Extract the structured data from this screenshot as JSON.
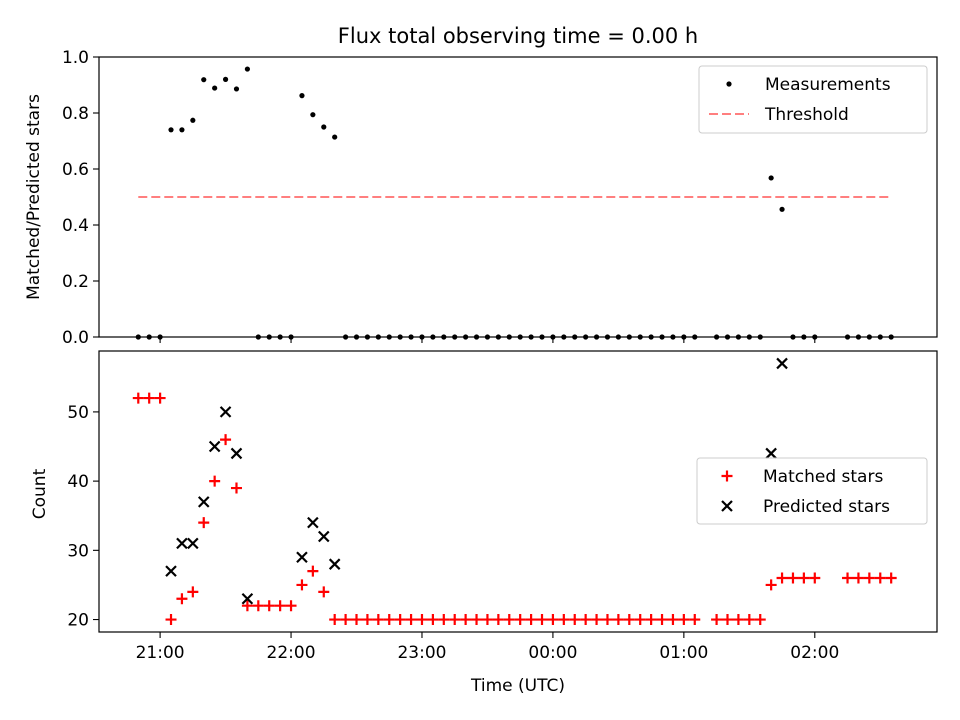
{
  "chart_data": [
    {
      "type": "scatter",
      "title": "Flux total observing time = 0.00 h",
      "xlabel": "",
      "ylabel": "Matched/Predicted stars",
      "xlim": [
        "20:32",
        "02:56"
      ],
      "ylim": [
        0,
        1.0
      ],
      "yticks": [
        0.0,
        0.2,
        0.4,
        0.6,
        0.8,
        1.0
      ],
      "ytick_labels": [
        "0.0",
        "0.2",
        "0.4",
        "0.6",
        "0.8",
        "1.0"
      ],
      "xticks": [
        "21:00",
        "22:00",
        "23:00",
        "00:00",
        "01:00",
        "02:00"
      ],
      "grid": false,
      "legend": {
        "placement": "upper right",
        "entries": [
          "Measurements",
          "Threshold"
        ]
      },
      "series": [
        {
          "name": "Measurements",
          "marker": "dot",
          "color": "#000000",
          "points": [
            [
              "20:50",
              0.0
            ],
            [
              "20:55",
              0.0
            ],
            [
              "21:00",
              0.0
            ],
            [
              "21:05",
              0.74
            ],
            [
              "21:10",
              0.74
            ],
            [
              "21:15",
              0.774
            ],
            [
              "21:20",
              0.919
            ],
            [
              "21:25",
              0.889
            ],
            [
              "21:30",
              0.92
            ],
            [
              "21:35",
              0.886
            ],
            [
              "21:40",
              0.957
            ],
            [
              "21:45",
              0.0
            ],
            [
              "21:50",
              0.0
            ],
            [
              "21:55",
              0.0
            ],
            [
              "22:00",
              0.0
            ],
            [
              "22:05",
              0.862
            ],
            [
              "22:10",
              0.794
            ],
            [
              "22:15",
              0.75
            ],
            [
              "22:20",
              0.714
            ],
            [
              "22:25",
              0.0
            ],
            [
              "22:30",
              0.0
            ],
            [
              "22:35",
              0.0
            ],
            [
              "22:40",
              0.0
            ],
            [
              "22:45",
              0.0
            ],
            [
              "22:50",
              0.0
            ],
            [
              "22:55",
              0.0
            ],
            [
              "23:00",
              0.0
            ],
            [
              "23:05",
              0.0
            ],
            [
              "23:10",
              0.0
            ],
            [
              "23:15",
              0.0
            ],
            [
              "23:20",
              0.0
            ],
            [
              "23:25",
              0.0
            ],
            [
              "23:30",
              0.0
            ],
            [
              "23:35",
              0.0
            ],
            [
              "23:40",
              0.0
            ],
            [
              "23:45",
              0.0
            ],
            [
              "23:50",
              0.0
            ],
            [
              "23:55",
              0.0
            ],
            [
              "00:00",
              0.0
            ],
            [
              "00:05",
              0.0
            ],
            [
              "00:10",
              0.0
            ],
            [
              "00:15",
              0.0
            ],
            [
              "00:20",
              0.0
            ],
            [
              "00:25",
              0.0
            ],
            [
              "00:30",
              0.0
            ],
            [
              "00:35",
              0.0
            ],
            [
              "00:40",
              0.0
            ],
            [
              "00:45",
              0.0
            ],
            [
              "00:50",
              0.0
            ],
            [
              "00:55",
              0.0
            ],
            [
              "01:00",
              0.0
            ],
            [
              "01:05",
              0.0
            ],
            [
              "01:15",
              0.0
            ],
            [
              "01:20",
              0.0
            ],
            [
              "01:25",
              0.0
            ],
            [
              "01:30",
              0.0
            ],
            [
              "01:35",
              0.0
            ],
            [
              "01:40",
              0.568
            ],
            [
              "01:45",
              0.456
            ],
            [
              "01:50",
              0.0
            ],
            [
              "01:55",
              0.0
            ],
            [
              "02:00",
              0.0
            ],
            [
              "02:15",
              0.0
            ],
            [
              "02:20",
              0.0
            ],
            [
              "02:25",
              0.0
            ],
            [
              "02:30",
              0.0
            ],
            [
              "02:35",
              0.0
            ]
          ]
        },
        {
          "name": "Threshold",
          "marker": "dashed-line",
          "color": "#ff7f7f",
          "points": [
            [
              "20:50",
              0.5
            ],
            [
              "02:35",
              0.5
            ]
          ]
        }
      ]
    },
    {
      "type": "scatter",
      "title": "",
      "xlabel": "Time (UTC)",
      "ylabel": "Count",
      "xlim": [
        "20:32",
        "02:56"
      ],
      "ylim": [
        18.2,
        58.8
      ],
      "yticks": [
        20,
        30,
        40,
        50
      ],
      "ytick_labels": [
        "20",
        "30",
        "40",
        "50"
      ],
      "xticks": [
        "21:00",
        "22:00",
        "23:00",
        "00:00",
        "01:00",
        "02:00"
      ],
      "grid": false,
      "legend": {
        "placement": "center right",
        "entries": [
          "Matched stars",
          "Predicted stars"
        ]
      },
      "series": [
        {
          "name": "Matched stars",
          "marker": "plus",
          "color": "#ff0000",
          "points": [
            [
              "20:50",
              52
            ],
            [
              "20:55",
              52
            ],
            [
              "21:00",
              52
            ],
            [
              "21:05",
              20
            ],
            [
              "21:10",
              23
            ],
            [
              "21:15",
              24
            ],
            [
              "21:20",
              34
            ],
            [
              "21:25",
              40
            ],
            [
              "21:30",
              46
            ],
            [
              "21:35",
              39
            ],
            [
              "21:40",
              22
            ],
            [
              "21:45",
              22
            ],
            [
              "21:50",
              22
            ],
            [
              "21:55",
              22
            ],
            [
              "22:00",
              22
            ],
            [
              "22:05",
              25
            ],
            [
              "22:10",
              27
            ],
            [
              "22:15",
              24
            ],
            [
              "22:20",
              20
            ],
            [
              "22:25",
              20
            ],
            [
              "22:30",
              20
            ],
            [
              "22:35",
              20
            ],
            [
              "22:40",
              20
            ],
            [
              "22:45",
              20
            ],
            [
              "22:50",
              20
            ],
            [
              "22:55",
              20
            ],
            [
              "23:00",
              20
            ],
            [
              "23:05",
              20
            ],
            [
              "23:10",
              20
            ],
            [
              "23:15",
              20
            ],
            [
              "23:20",
              20
            ],
            [
              "23:25",
              20
            ],
            [
              "23:30",
              20
            ],
            [
              "23:35",
              20
            ],
            [
              "23:40",
              20
            ],
            [
              "23:45",
              20
            ],
            [
              "23:50",
              20
            ],
            [
              "23:55",
              20
            ],
            [
              "00:00",
              20
            ],
            [
              "00:05",
              20
            ],
            [
              "00:10",
              20
            ],
            [
              "00:15",
              20
            ],
            [
              "00:20",
              20
            ],
            [
              "00:25",
              20
            ],
            [
              "00:30",
              20
            ],
            [
              "00:35",
              20
            ],
            [
              "00:40",
              20
            ],
            [
              "00:45",
              20
            ],
            [
              "00:50",
              20
            ],
            [
              "00:55",
              20
            ],
            [
              "01:00",
              20
            ],
            [
              "01:05",
              20
            ],
            [
              "01:15",
              20
            ],
            [
              "01:20",
              20
            ],
            [
              "01:25",
              20
            ],
            [
              "01:30",
              20
            ],
            [
              "01:35",
              20
            ],
            [
              "01:40",
              25
            ],
            [
              "01:45",
              26
            ],
            [
              "01:50",
              26
            ],
            [
              "01:55",
              26
            ],
            [
              "02:00",
              26
            ],
            [
              "02:15",
              26
            ],
            [
              "02:20",
              26
            ],
            [
              "02:25",
              26
            ],
            [
              "02:30",
              26
            ],
            [
              "02:35",
              26
            ]
          ]
        },
        {
          "name": "Predicted stars",
          "marker": "x",
          "color": "#000000",
          "points": [
            [
              "21:05",
              27
            ],
            [
              "21:10",
              31
            ],
            [
              "21:15",
              31
            ],
            [
              "21:20",
              37
            ],
            [
              "21:25",
              45
            ],
            [
              "21:30",
              50
            ],
            [
              "21:35",
              44
            ],
            [
              "21:40",
              23
            ],
            [
              "22:05",
              29
            ],
            [
              "22:10",
              34
            ],
            [
              "22:15",
              32
            ],
            [
              "22:20",
              28
            ],
            [
              "01:40",
              44
            ],
            [
              "01:45",
              57
            ]
          ]
        }
      ]
    }
  ]
}
